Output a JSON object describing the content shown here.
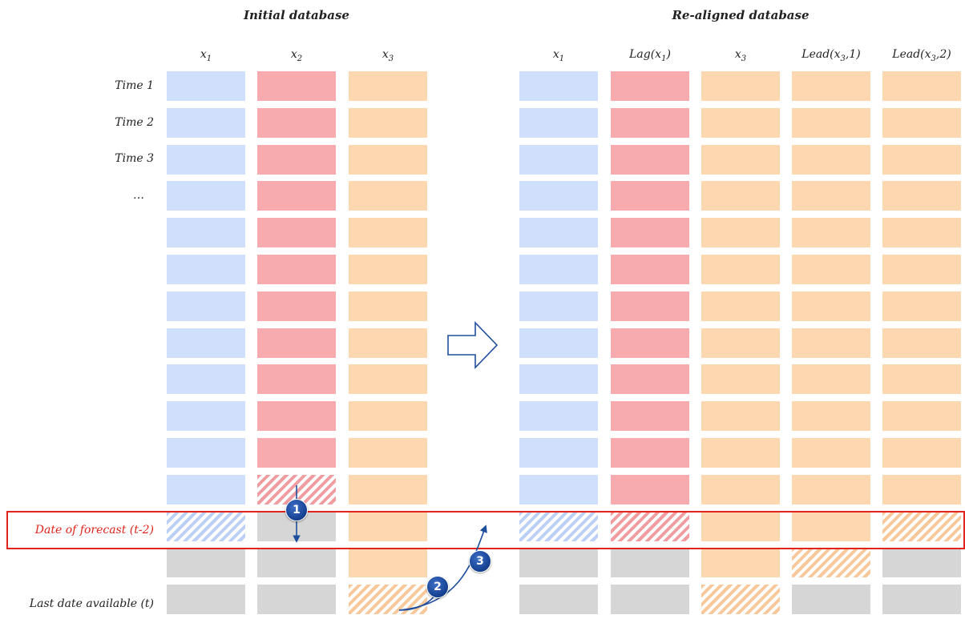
{
  "titles": {
    "left": "Initial database",
    "right": "Re-aligned database"
  },
  "left_columns": [
    {
      "name": "x",
      "sub": "1",
      "rest": ""
    },
    {
      "name": "x",
      "sub": "2",
      "rest": ""
    },
    {
      "name": "x",
      "sub": "3",
      "rest": ""
    }
  ],
  "right_columns": [
    {
      "name": "x",
      "sub": "1",
      "rest": ""
    },
    {
      "name": "Lag(x",
      "sub": "1",
      "rest": ")"
    },
    {
      "name": "x",
      "sub": "3",
      "rest": ""
    },
    {
      "name": "Lead(x",
      "sub": "3",
      "rest": ",1)"
    },
    {
      "name": "Lead(x",
      "sub": "3",
      "rest": ",2)"
    }
  ],
  "row_labels": {
    "time1": "Time 1",
    "time2": "Time 2",
    "time3": "Time 3",
    "ellipsis": "…",
    "forecast": "Date of forecast (t-2)",
    "last": "Last date available (t)"
  },
  "steps": [
    "1",
    "2",
    "3"
  ],
  "cell_grid_left": [
    [
      "blue",
      "red",
      "orange"
    ],
    [
      "blue",
      "red",
      "orange"
    ],
    [
      "blue",
      "red",
      "orange"
    ],
    [
      "blue",
      "red",
      "orange"
    ],
    [
      "blue",
      "red",
      "orange"
    ],
    [
      "blue",
      "red",
      "orange"
    ],
    [
      "blue",
      "red",
      "orange"
    ],
    [
      "blue",
      "red",
      "orange"
    ],
    [
      "blue",
      "red",
      "orange"
    ],
    [
      "blue",
      "red",
      "orange"
    ],
    [
      "blue",
      "red",
      "orange"
    ],
    [
      "blue",
      "hatch-red",
      "orange"
    ],
    [
      "hatch-blue",
      "grey",
      "orange"
    ],
    [
      "grey",
      "grey",
      "orange"
    ],
    [
      "grey",
      "grey",
      "hatch-orange"
    ]
  ],
  "cell_grid_right": [
    [
      "blue",
      "red",
      "orange",
      "orange",
      "orange"
    ],
    [
      "blue",
      "red",
      "orange",
      "orange",
      "orange"
    ],
    [
      "blue",
      "red",
      "orange",
      "orange",
      "orange"
    ],
    [
      "blue",
      "red",
      "orange",
      "orange",
      "orange"
    ],
    [
      "blue",
      "red",
      "orange",
      "orange",
      "orange"
    ],
    [
      "blue",
      "red",
      "orange",
      "orange",
      "orange"
    ],
    [
      "blue",
      "red",
      "orange",
      "orange",
      "orange"
    ],
    [
      "blue",
      "red",
      "orange",
      "orange",
      "orange"
    ],
    [
      "blue",
      "red",
      "orange",
      "orange",
      "orange"
    ],
    [
      "blue",
      "red",
      "orange",
      "orange",
      "orange"
    ],
    [
      "blue",
      "red",
      "orange",
      "orange",
      "orange"
    ],
    [
      "blue",
      "red",
      "orange",
      "orange",
      "orange"
    ],
    [
      "hatch-blue",
      "hatch-red",
      "orange",
      "orange",
      "hatch-orange"
    ],
    [
      "grey",
      "grey",
      "orange",
      "hatch-orange",
      "grey"
    ],
    [
      "grey",
      "grey",
      "hatch-orange",
      "grey",
      "grey"
    ]
  ],
  "colors": {
    "blue": "#d0dffb",
    "red": "#f7abaf",
    "orange": "#fcd7af",
    "grey": "#d6d6d6",
    "forecast_highlight": "#e0241b",
    "arrow_blue": "#1f4e9c"
  }
}
